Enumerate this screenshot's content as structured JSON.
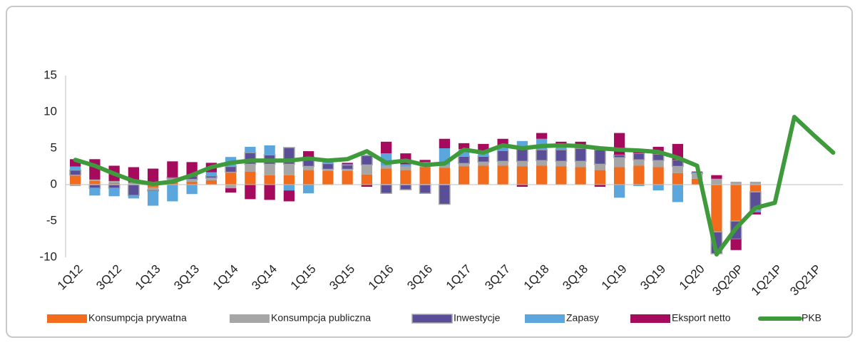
{
  "chart_data": {
    "type": "bar",
    "ylim": [
      -10,
      15
    ],
    "yticks": [
      -10,
      -5,
      0,
      5,
      10,
      15
    ],
    "grid": false,
    "categories": [
      "1Q12",
      null,
      "3Q12",
      null,
      "1Q13",
      null,
      "3Q13",
      null,
      "1Q14",
      null,
      "3Q14",
      null,
      "1Q15",
      null,
      "3Q15",
      null,
      "1Q16",
      null,
      "3Q16",
      null,
      "1Q17",
      null,
      "3Q17",
      null,
      "1Q18",
      null,
      "3Q18",
      null,
      "1Q19",
      null,
      "3Q19",
      null,
      "1Q20",
      null,
      "3Q20P",
      null,
      "1Q21P",
      null,
      "3Q21P",
      null
    ],
    "series": [
      {
        "name": "Konsumpcja prywatna",
        "color": "#f36b1c",
        "values": [
          1.3,
          0.5,
          0.2,
          0.0,
          -0.4,
          0.5,
          0.4,
          0.6,
          1.7,
          1.8,
          1.3,
          1.3,
          2.0,
          1.9,
          1.9,
          1.4,
          2.2,
          2.0,
          2.4,
          2.3,
          2.5,
          2.6,
          2.6,
          2.5,
          2.6,
          2.5,
          2.4,
          2.0,
          2.4,
          2.6,
          2.4,
          1.6,
          0.8,
          -6.5,
          -5.0,
          -1.0,
          null,
          null,
          null,
          null
        ]
      },
      {
        "name": "Konsumpcja publiczna",
        "color": "#a6a6a6",
        "values": [
          -0.2,
          0.2,
          0.3,
          0.3,
          -0.3,
          0.3,
          0.3,
          0.3,
          -0.5,
          1.0,
          1.5,
          1.5,
          0.5,
          0.2,
          0.2,
          1.3,
          0.4,
          0.5,
          0.4,
          0.4,
          0.4,
          0.5,
          0.6,
          0.7,
          0.7,
          0.7,
          0.8,
          0.8,
          1.3,
          0.8,
          0.9,
          0.9,
          0.7,
          0.8,
          0.4,
          0.4,
          null,
          null,
          null,
          null
        ]
      },
      {
        "name": "Inwestycje",
        "color": "#594e97",
        "values": [
          0.7,
          -0.5,
          -0.5,
          -1.5,
          -0.2,
          0.2,
          0.5,
          0.3,
          0.8,
          1.6,
          1.3,
          2.3,
          1.3,
          0.8,
          0.6,
          1.3,
          -1.2,
          -0.7,
          -1.2,
          -2.7,
          1.0,
          0.8,
          1.5,
          2.0,
          1.5,
          1.6,
          1.8,
          2.0,
          0.4,
          0.9,
          0.9,
          0.9,
          0.1,
          -3.0,
          -2.5,
          -2.5,
          null,
          null,
          null,
          null
        ]
      },
      {
        "name": "Zapasy",
        "color": "#5ba6dc",
        "values": [
          0.5,
          -1.0,
          -1.1,
          -0.4,
          -2.0,
          -2.3,
          -1.3,
          0.5,
          1.3,
          0.8,
          1.3,
          -0.8,
          -1.2,
          0.2,
          0.1,
          0.1,
          1.7,
          0.3,
          0.3,
          2.3,
          1.0,
          0.7,
          0.6,
          0.8,
          1.5,
          0.5,
          0.5,
          0.0,
          -1.8,
          -0.2,
          -0.8,
          -2.4,
          0.1,
          0.0,
          0.0,
          -0.3,
          null,
          null,
          null,
          null
        ]
      },
      {
        "name": "Eksport netto",
        "color": "#a50a5c",
        "values": [
          1.0,
          2.8,
          2.1,
          2.1,
          2.2,
          2.2,
          1.9,
          1.3,
          -0.6,
          -2.0,
          -2.1,
          -1.5,
          0.8,
          0.2,
          0.2,
          -0.3,
          1.6,
          1.5,
          0.3,
          1.3,
          0.8,
          1.0,
          1.0,
          -0.3,
          0.8,
          0.6,
          0.4,
          -0.3,
          3.0,
          0.4,
          1.0,
          2.2,
          0.1,
          0.5,
          -1.5,
          -0.3,
          null,
          null,
          null,
          null
        ]
      },
      {
        "name": "PKB",
        "type": "line",
        "color": "#3f9a3c",
        "values": [
          3.4,
          2.6,
          1.5,
          0.5,
          0.1,
          0.4,
          1.3,
          2.4,
          3.0,
          3.3,
          3.3,
          3.3,
          3.6,
          3.3,
          3.5,
          4.6,
          3.0,
          3.3,
          2.7,
          2.9,
          4.8,
          4.4,
          5.4,
          5.0,
          5.3,
          5.4,
          5.3,
          5.0,
          4.8,
          4.7,
          4.5,
          3.7,
          2.6,
          -9.6,
          -6.0,
          -3.2,
          -2.5,
          9.3,
          6.8,
          4.4
        ]
      }
    ]
  }
}
